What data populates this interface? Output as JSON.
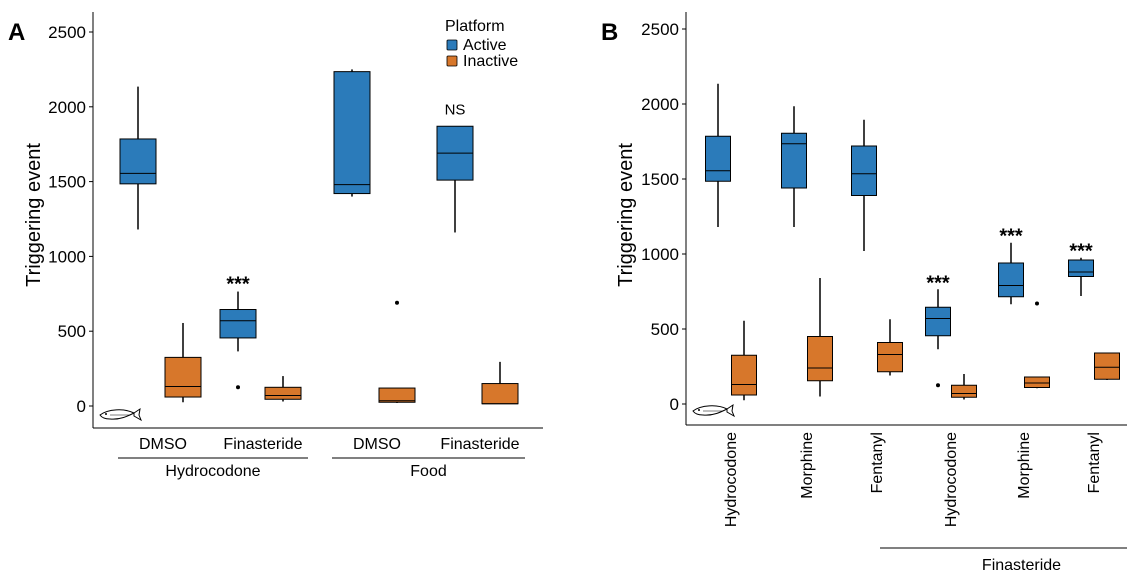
{
  "colors": {
    "active": "#2b7bba",
    "inactive": "#d7772b"
  },
  "legend": {
    "title": "Platform",
    "items": [
      {
        "label": "Active",
        "color": "#2b7bba"
      },
      {
        "label": "Inactive",
        "color": "#d7772b"
      }
    ]
  },
  "chart_data": [
    {
      "panel": "A",
      "type": "box",
      "ylabel": "Triggering event",
      "ylim": [
        0,
        2550
      ],
      "yticks": [
        0,
        500,
        1000,
        1500,
        2000,
        2500
      ],
      "categories": [
        "DMSO",
        "Finasteride",
        "DMSO",
        "Finasteride"
      ],
      "groups": [
        {
          "label": "Hydrocodone",
          "categories": [
            0,
            1
          ]
        },
        {
          "label": "Food",
          "categories": [
            2,
            3
          ]
        }
      ],
      "boxes": [
        {
          "category": 0,
          "series": "Active",
          "min": 1180,
          "q1": 1485,
          "median": 1555,
          "q3": 1785,
          "max": 2135,
          "outliers": []
        },
        {
          "category": 0,
          "series": "Inactive",
          "min": 25,
          "q1": 60,
          "median": 130,
          "q3": 325,
          "max": 555,
          "outliers": []
        },
        {
          "category": 1,
          "series": "Active",
          "min": 365,
          "q1": 455,
          "median": 570,
          "q3": 645,
          "max": 765,
          "outliers": [
            125
          ]
        },
        {
          "category": 1,
          "series": "Inactive",
          "min": 30,
          "q1": 45,
          "median": 70,
          "q3": 125,
          "max": 200,
          "outliers": []
        },
        {
          "category": 2,
          "series": "Active",
          "min": 1400,
          "q1": 1420,
          "median": 1480,
          "q3": 2235,
          "max": 2250,
          "outliers": []
        },
        {
          "category": 2,
          "series": "Inactive",
          "min": 20,
          "q1": 25,
          "median": 35,
          "q3": 120,
          "max": 120,
          "outliers": [
            690
          ]
        },
        {
          "category": 3,
          "series": "Active",
          "min": 1160,
          "q1": 1510,
          "median": 1690,
          "q3": 1870,
          "max": 1870,
          "outliers": []
        },
        {
          "category": 3,
          "series": "Inactive",
          "min": 15,
          "q1": 15,
          "median": 15,
          "q3": 150,
          "max": 295,
          "outliers": []
        }
      ],
      "annotations": [
        {
          "category": 1,
          "series": "Active",
          "y": 840,
          "text": "***"
        },
        {
          "category": 3,
          "series": "Active",
          "y": 1950,
          "text": "NS"
        }
      ]
    },
    {
      "panel": "B",
      "type": "box",
      "ylabel": "Triggering event",
      "ylim": [
        0,
        2550
      ],
      "yticks": [
        0,
        500,
        1000,
        1500,
        2000,
        2500
      ],
      "categories": [
        "Hydrocodone",
        "Morphine",
        "Fentanyl",
        "Hydrocodone",
        "Morphine",
        "Fentanyl"
      ],
      "groups": [
        {
          "label": "Finasteride",
          "categories": [
            3,
            4,
            5
          ]
        }
      ],
      "boxes": [
        {
          "category": 0,
          "series": "Active",
          "min": 1180,
          "q1": 1485,
          "median": 1555,
          "q3": 1785,
          "max": 2135,
          "outliers": []
        },
        {
          "category": 0,
          "series": "Inactive",
          "min": 25,
          "q1": 60,
          "median": 130,
          "q3": 325,
          "max": 555,
          "outliers": []
        },
        {
          "category": 1,
          "series": "Active",
          "min": 1180,
          "q1": 1440,
          "median": 1735,
          "q3": 1805,
          "max": 1985,
          "outliers": []
        },
        {
          "category": 1,
          "series": "Inactive",
          "min": 50,
          "q1": 155,
          "median": 240,
          "q3": 450,
          "max": 840,
          "outliers": []
        },
        {
          "category": 2,
          "series": "Active",
          "min": 1020,
          "q1": 1390,
          "median": 1535,
          "q3": 1720,
          "max": 1895,
          "outliers": []
        },
        {
          "category": 2,
          "series": "Inactive",
          "min": 190,
          "q1": 215,
          "median": 330,
          "q3": 410,
          "max": 565,
          "outliers": []
        },
        {
          "category": 3,
          "series": "Active",
          "min": 365,
          "q1": 455,
          "median": 570,
          "q3": 645,
          "max": 765,
          "outliers": [
            125
          ]
        },
        {
          "category": 3,
          "series": "Inactive",
          "min": 30,
          "q1": 45,
          "median": 70,
          "q3": 125,
          "max": 200,
          "outliers": []
        },
        {
          "category": 4,
          "series": "Active",
          "min": 665,
          "q1": 715,
          "median": 790,
          "q3": 940,
          "max": 1075,
          "outliers": []
        },
        {
          "category": 4,
          "series": "Inactive",
          "min": 105,
          "q1": 110,
          "median": 140,
          "q3": 180,
          "max": 180,
          "outliers": [
            670
          ]
        },
        {
          "category": 5,
          "series": "Active",
          "min": 720,
          "q1": 850,
          "median": 880,
          "q3": 960,
          "max": 975,
          "outliers": []
        },
        {
          "category": 5,
          "series": "Inactive",
          "min": 160,
          "q1": 165,
          "median": 245,
          "q3": 340,
          "max": 340,
          "outliers": []
        }
      ],
      "annotations": [
        {
          "category": 3,
          "series": "Active",
          "y": 830,
          "text": "***"
        },
        {
          "category": 4,
          "series": "Active",
          "y": 1145,
          "text": "***"
        },
        {
          "category": 5,
          "series": "Active",
          "y": 1045,
          "text": "***"
        }
      ]
    }
  ]
}
